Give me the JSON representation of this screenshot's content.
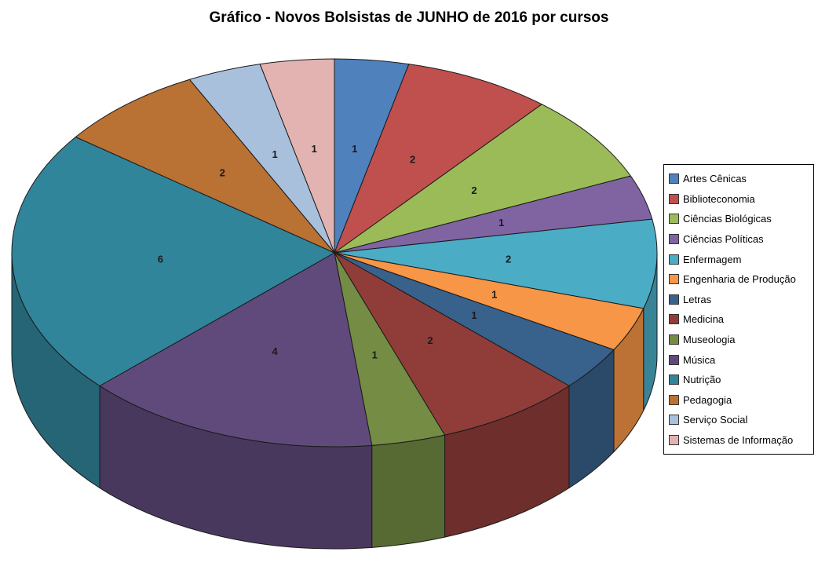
{
  "title": "Gráfico - Novos Bolsistas de JUNHO de 2016 por cursos",
  "chart_data": {
    "type": "pie",
    "style": "3d-pie",
    "title": "Gráfico - Novos Bolsistas de JUNHO de 2016 por cursos",
    "start_angle_deg": 0,
    "direction": "clockwise",
    "legend_position": "right",
    "data_labels_shown": true,
    "total": 27,
    "series": [
      {
        "label": "Artes Cênicas",
        "value": 1,
        "color": "#4F81BD"
      },
      {
        "label": "Biblioteconomia",
        "value": 2,
        "color": "#C0504D"
      },
      {
        "label": "Ciências Biológicas",
        "value": 2,
        "color": "#9BBB59"
      },
      {
        "label": "Ciências Políticas",
        "value": 1,
        "color": "#8064A2"
      },
      {
        "label": "Enfermagem",
        "value": 2,
        "color": "#4BACC6"
      },
      {
        "label": "Engenharia de Produção",
        "value": 1,
        "color": "#F79646"
      },
      {
        "label": "Letras",
        "value": 1,
        "color": "#38618C"
      },
      {
        "label": "Medicina",
        "value": 2,
        "color": "#903D3A"
      },
      {
        "label": "Museologia",
        "value": 1,
        "color": "#748C43"
      },
      {
        "label": "Música",
        "value": 4,
        "color": "#604A7B"
      },
      {
        "label": "Nutrição",
        "value": 6,
        "color": "#31859B"
      },
      {
        "label": "Pedagogia",
        "value": 2,
        "color": "#B97134"
      },
      {
        "label": "Serviço Social",
        "value": 1,
        "color": "#A9C0DC"
      },
      {
        "label": "Sistemas de Informação",
        "value": 1,
        "color": "#E3B3B2"
      }
    ]
  }
}
